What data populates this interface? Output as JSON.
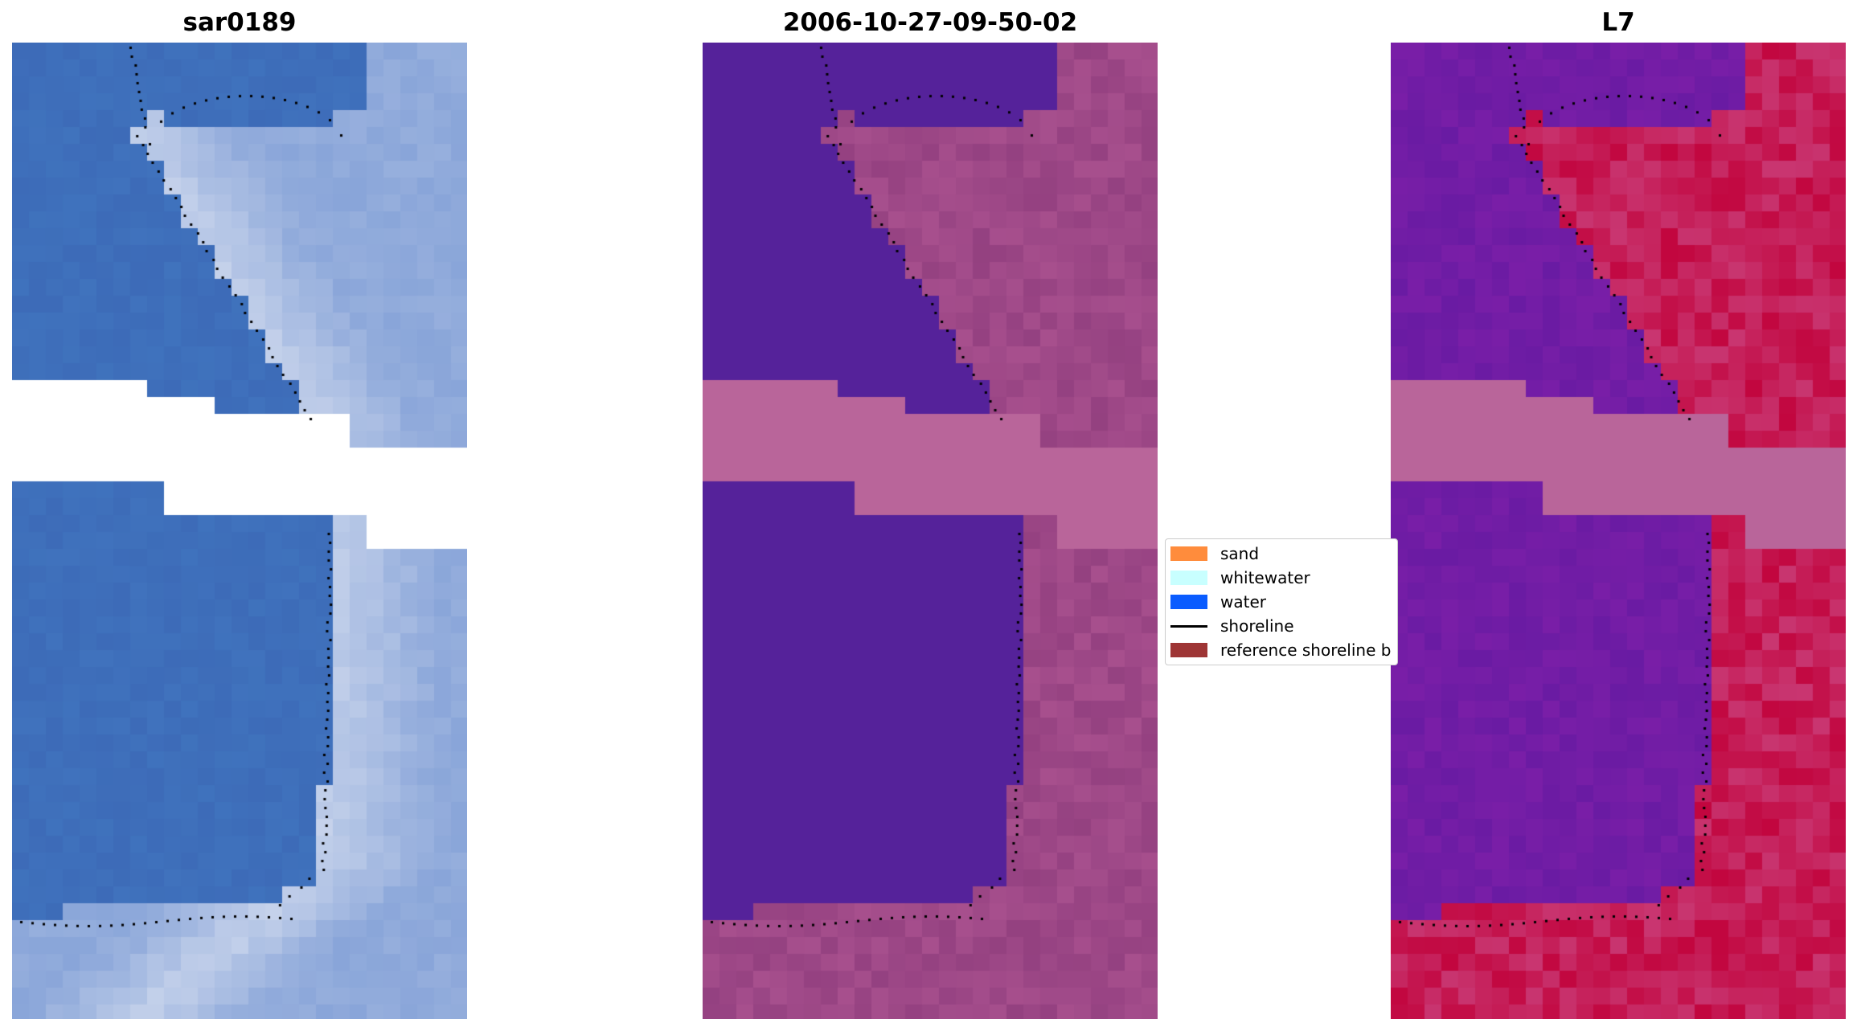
{
  "panels": [
    {
      "title": "sar0189",
      "style": "rgb"
    },
    {
      "title": "2006-10-27-09-50-02",
      "style": "classified"
    },
    {
      "title": "L7",
      "style": "index"
    }
  ],
  "legend": {
    "items": [
      {
        "label": "sand",
        "kind": "patch",
        "color": "#ff8c3c"
      },
      {
        "label": "whitewater",
        "kind": "patch",
        "color": "#c8ffff"
      },
      {
        "label": "water",
        "kind": "patch",
        "color": "#0a5cff"
      },
      {
        "label": "shoreline",
        "kind": "line",
        "color": "#000000"
      },
      {
        "label": "reference shoreline b",
        "kind": "patch",
        "color": "#9e3535"
      }
    ]
  },
  "colors": {
    "nodata_band": "#b9659a",
    "water_class": "#55229a",
    "land_class": "#a8508e",
    "sea_rgb": "#3d6bb8",
    "surf_rgb": "#c8d4ec",
    "index_low": "#7a1fa8",
    "index_high": "#c2063f"
  }
}
